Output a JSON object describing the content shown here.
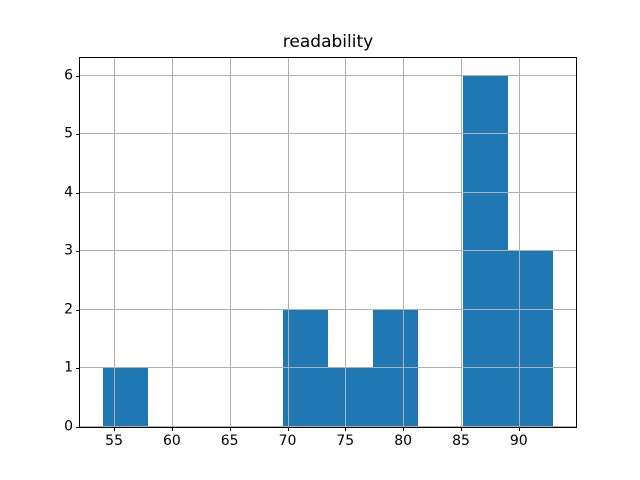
{
  "chart_data": {
    "type": "histogram",
    "title": "readability",
    "xlabel": "",
    "ylabel": "",
    "bin_edges": [
      54.0,
      57.9,
      61.8,
      65.7,
      69.6,
      73.5,
      77.4,
      81.3,
      85.2,
      89.1,
      93.0
    ],
    "counts": [
      1,
      0,
      0,
      0,
      2,
      1,
      2,
      0,
      6,
      3
    ],
    "x_ticks": [
      55,
      60,
      65,
      70,
      75,
      80,
      85,
      90
    ],
    "y_ticks": [
      0,
      1,
      2,
      3,
      4,
      5,
      6
    ],
    "xlim": [
      52.05,
      94.95
    ],
    "ylim": [
      0,
      6.3
    ],
    "grid": true,
    "grid_above_bars": true,
    "legend_position": "none",
    "colors": {
      "bar": "#1f77b4",
      "grid": "#b0b0b0",
      "spine": "#000000",
      "text": "#000000",
      "background": "#ffffff"
    }
  }
}
